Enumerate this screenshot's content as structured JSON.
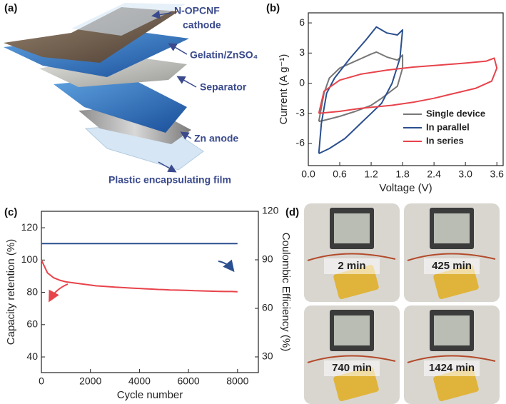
{
  "panels": [
    "(a)",
    "(b)",
    "(c)",
    "(d)"
  ],
  "diagram": {
    "labels": [
      "N-OPCNF",
      "cathode",
      "Gelatin/ZnSO₄",
      "Separator",
      "Zn anode",
      "Plastic encapsulating film"
    ]
  },
  "photos": {
    "labels": [
      "2 min",
      "425 min",
      "740 min",
      "1424 min"
    ]
  },
  "chart_data": [
    {
      "type": "line",
      "x_label": "Voltage (V)",
      "y_label": "Current (A g⁻¹)",
      "xlim": [
        0,
        3.72
      ],
      "ylim": [
        -8.2,
        7
      ],
      "xticks": [
        {
          "value": 0,
          "label": "0.0"
        },
        0.6,
        1.2,
        1.8,
        2.4,
        {
          "value": 3,
          "label": "3.0"
        },
        3.6
      ],
      "yticks": [
        -6,
        -3,
        0,
        3,
        6
      ],
      "legend": "lower right",
      "series": [
        {
          "name": "Single device",
          "color": "#777777",
          "x": [
            0.2,
            0.3,
            0.4,
            0.6,
            0.9,
            1.2,
            1.3,
            1.5,
            1.7,
            1.8,
            1.8,
            1.7,
            1.4,
            1.2,
            0.9,
            0.6,
            0.3,
            0.2
          ],
          "values": [
            -3.8,
            -1,
            0.5,
            1.5,
            2.2,
            2.9,
            3.1,
            2.6,
            2.3,
            2.8,
            1.5,
            -0.3,
            -1.5,
            -2.2,
            -2.8,
            -3.3,
            -3.7,
            -3.8
          ]
        },
        {
          "name": "In parallel",
          "color": "#2b4f8f",
          "x": [
            0.2,
            0.25,
            0.35,
            0.5,
            0.8,
            1.1,
            1.3,
            1.5,
            1.7,
            1.8,
            1.75,
            1.6,
            1.4,
            1.2,
            1.0,
            0.7,
            0.4,
            0.2
          ],
          "values": [
            -7,
            -4,
            -1,
            0.5,
            2.5,
            4.3,
            5.6,
            5.0,
            4.8,
            5.3,
            2.5,
            0,
            -2,
            -3,
            -4,
            -5.5,
            -6.5,
            -7
          ]
        },
        {
          "name": "In series",
          "color": "#e8434b",
          "x": [
            0.2,
            0.3,
            0.6,
            1.0,
            1.5,
            2.0,
            2.5,
            3.0,
            3.4,
            3.55,
            3.6,
            3.5,
            3.2,
            2.8,
            2.4,
            2.0,
            1.6,
            1.0,
            0.6,
            0.2
          ],
          "values": [
            -3,
            -0.8,
            0.3,
            0.9,
            1.3,
            1.6,
            1.8,
            2.0,
            2.2,
            2.5,
            1.5,
            0.2,
            -0.5,
            -1.0,
            -1.5,
            -1.9,
            -2.2,
            -2.5,
            -2.8,
            -3.0
          ]
        }
      ]
    },
    {
      "type": "line",
      "x_label": "Cycle number",
      "y_label": "Capacity retention (%)",
      "y2_label": "Coulombic Efficiency (%)",
      "xlim": [
        0,
        8850
      ],
      "ylim": [
        30.3,
        130.2
      ],
      "y2lim": [
        20.3,
        120
      ],
      "xticks": [
        0,
        2000,
        4000,
        6000,
        8000
      ],
      "yticks": [
        40,
        60,
        80,
        100,
        120
      ],
      "y2ticks": [
        30,
        60,
        90,
        120
      ],
      "x": [
        0,
        250,
        500,
        750,
        1000,
        1250,
        1500,
        1750,
        2000,
        2250,
        2500,
        2750,
        3000,
        3250,
        3500,
        3750,
        4000,
        4250,
        4500,
        4750,
        5000,
        5250,
        5500,
        5750,
        6000,
        6250,
        6500,
        6750,
        7000,
        7250,
        7500,
        7750,
        8000
      ],
      "series": [
        {
          "color": "#e8434b",
          "values": [
            100,
            92,
            89,
            87.5,
            86.5,
            86,
            85.5,
            85,
            84.5,
            84,
            83.8,
            83.5,
            83.2,
            83,
            82.8,
            82.6,
            82.4,
            82.2,
            82,
            81.8,
            81.7,
            81.5,
            81.4,
            81.3,
            81.2,
            81,
            80.9,
            80.8,
            80.7,
            80.6,
            80.5,
            80.5,
            80.4
          ]
        },
        {
          "color": "#2b4f8f",
          "axis": "y2",
          "values": [
            100,
            100,
            100,
            100,
            100,
            100,
            100,
            100,
            100,
            100,
            100,
            100,
            100,
            100,
            100,
            100,
            100,
            100,
            100,
            100,
            100,
            100,
            100,
            100,
            100,
            100,
            100,
            100,
            100,
            100,
            100,
            100,
            100
          ]
        }
      ]
    }
  ]
}
